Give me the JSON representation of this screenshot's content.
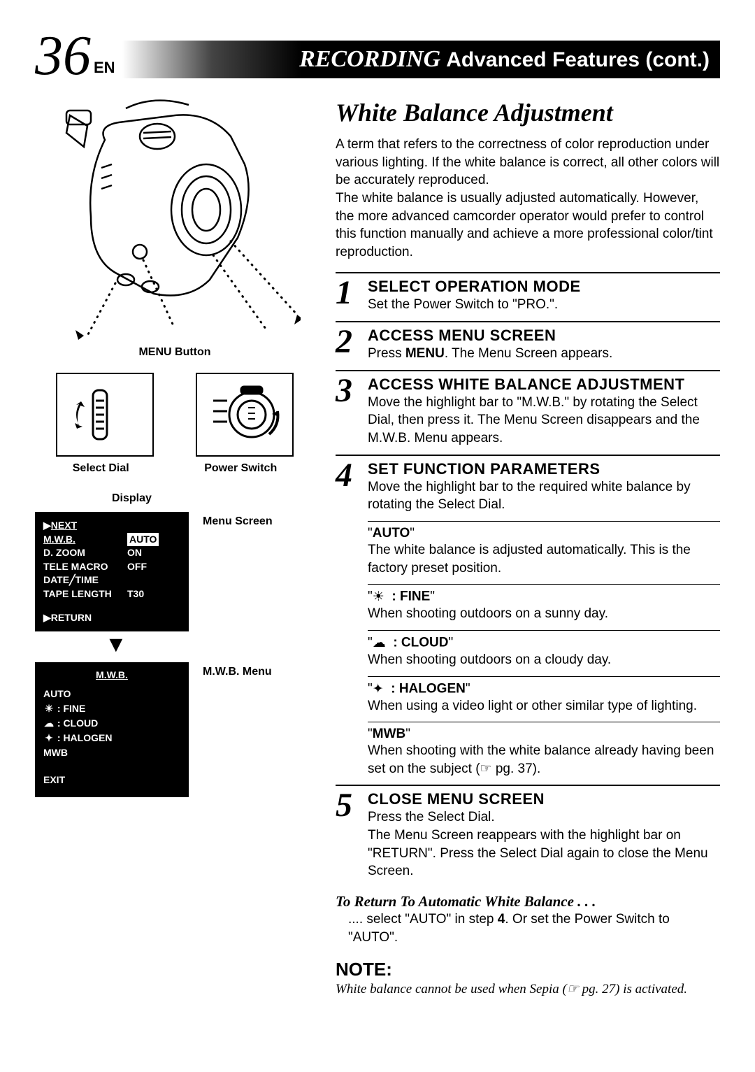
{
  "page_number": "36",
  "page_lang": "EN",
  "banner": {
    "recording": "RECORDING",
    "subtitle": "Advanced Features (cont.)"
  },
  "left": {
    "menu_button": "MENU Button",
    "select_dial": "Select Dial",
    "power_switch": "Power Switch",
    "display": "Display",
    "menu_screen_label": "Menu Screen",
    "mwb_menu_label": "M.W.B. Menu",
    "menu_screen": {
      "next": "NEXT",
      "rows": [
        {
          "key": "M.W.B.",
          "val": "AUTO",
          "key_underline": true,
          "val_inverse": true
        },
        {
          "key": "D. ZOOM",
          "val": "ON"
        },
        {
          "key": "TELE MACRO",
          "val": "OFF"
        },
        {
          "key": "DATE╱TIME",
          "val": ""
        },
        {
          "key": "TAPE LENGTH",
          "val": "T30"
        }
      ],
      "return": "RETURN"
    },
    "mwb_menu": {
      "title": "M.W.B.",
      "items": [
        {
          "icon": "",
          "label": "AUTO",
          "underline": true
        },
        {
          "icon": "☀",
          "label": ": FINE",
          "underline": true
        },
        {
          "icon": "☁",
          "label": ": CLOUD"
        },
        {
          "icon": "✦",
          "label": ": HALOGEN"
        },
        {
          "icon": "",
          "label": "MWB"
        }
      ],
      "exit": "EXIT"
    }
  },
  "right": {
    "title": "White Balance Adjustment",
    "intro": "A term that refers to the correctness of color reproduction under various lighting. If the white balance is correct, all other colors will be accurately reproduced.\nThe white balance is usually adjusted automatically. However, the more advanced camcorder operator would prefer to control this function manually and achieve a more professional color/tint reproduction.",
    "steps": [
      {
        "n": "1",
        "title": "SELECT OPERATION MODE",
        "text": "Set the Power Switch to \"PRO.\"."
      },
      {
        "n": "2",
        "title": "ACCESS MENU SCREEN",
        "text_html": "Press <b>MENU</b>. The Menu Screen appears."
      },
      {
        "n": "3",
        "title": "ACCESS WHITE BALANCE ADJUSTMENT",
        "text": "Move the highlight bar to \"M.W.B.\" by rotating the Select Dial, then press it. The Menu Screen disappears and the M.W.B. Menu appears."
      },
      {
        "n": "4",
        "title": "SET FUNCTION PARAMETERS",
        "text": "Move the highlight bar to the required white balance by rotating the Select Dial."
      }
    ],
    "subs": [
      {
        "label": "\"AUTO\"",
        "text": "The white balance is adjusted automatically. This is the factory preset position.",
        "icon": ""
      },
      {
        "label": ": FINE\"",
        "prefix": "\"",
        "text": "When shooting outdoors on a sunny day.",
        "icon": "☀"
      },
      {
        "label": ": CLOUD\"",
        "prefix": "\"",
        "text": "When shooting outdoors on a cloudy day.",
        "icon": "☁"
      },
      {
        "label": ": HALOGEN\"",
        "prefix": "\"",
        "text": "When using a video light or other similar type of lighting.",
        "icon": "✦"
      },
      {
        "label": "\"MWB\"",
        "text_html": "When shooting with the white balance already having been set on the subject (☞ pg. 37).",
        "icon": ""
      }
    ],
    "step5": {
      "n": "5",
      "title": "CLOSE MENU SCREEN",
      "text": "Press the Select Dial.\nThe Menu Screen reappears with the highlight bar on \"RETURN\". Press the Select Dial again to close the Menu Screen."
    },
    "return_title": "To Return To Automatic White Balance . . .",
    "return_text_html": ".... select \"AUTO\" in step <b>4</b>. Or set the Power Switch to \"AUTO\".",
    "note_title": "NOTE:",
    "note_text": "White balance cannot be used when Sepia (☞ pg. 27) is activated."
  },
  "colors": {
    "bg": "#ffffff",
    "text": "#000000",
    "menu_bg": "#000000",
    "menu_fg": "#ffffff"
  }
}
